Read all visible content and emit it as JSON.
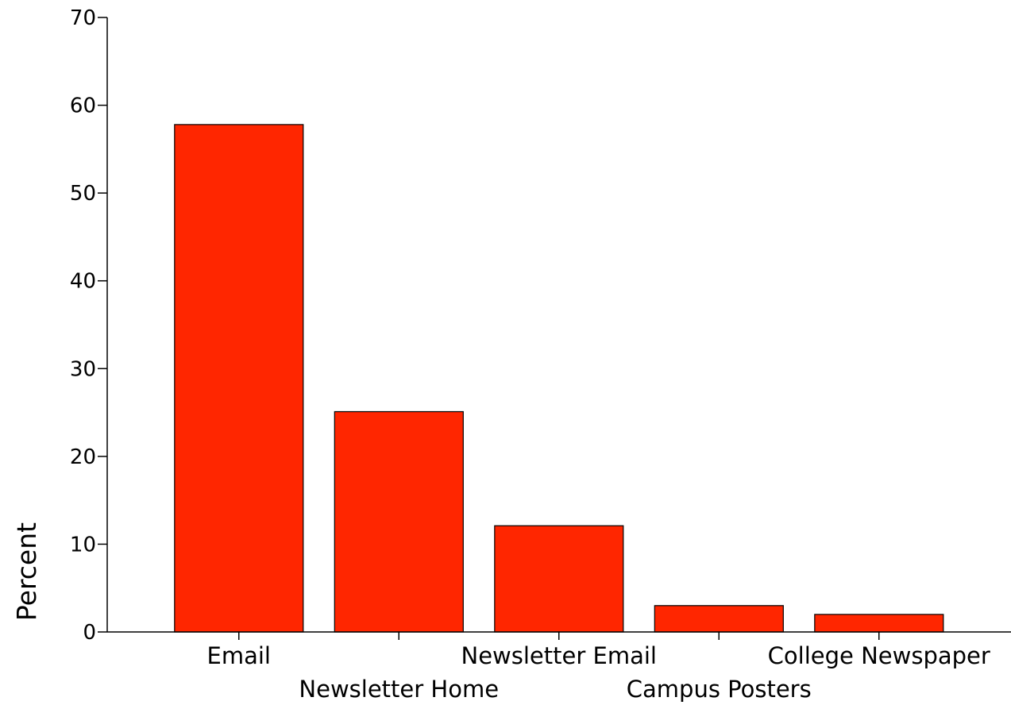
{
  "chart_data": {
    "type": "bar",
    "categories": [
      "Email",
      "Newsletter Home",
      "Newsletter Email",
      "Campus Posters",
      "College Newspaper"
    ],
    "values": [
      57.8,
      25.1,
      12.1,
      3.0,
      2.0
    ],
    "title": "",
    "xlabel": "",
    "ylabel": "Percent",
    "ylim": [
      0,
      70
    ],
    "yticks": [
      0,
      10,
      20,
      30,
      40,
      50,
      60,
      70
    ],
    "grid": false,
    "bar_color": "#ff2600"
  }
}
